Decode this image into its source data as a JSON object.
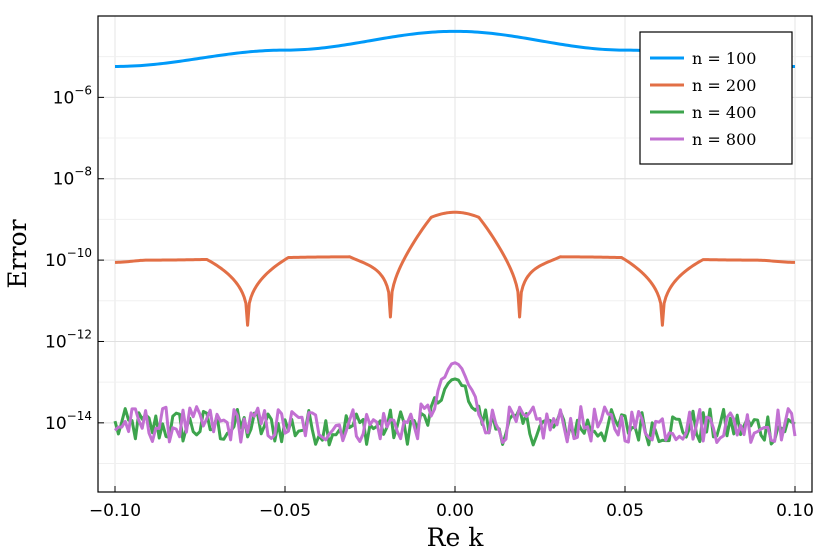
{
  "chart_data": {
    "type": "line",
    "title": "",
    "xlabel": "Re k",
    "ylabel": "Error",
    "xlim": [
      -0.105,
      0.105
    ],
    "ylim_log10": [
      -15.7,
      -4.0
    ],
    "y_scale": "log10",
    "grid": true,
    "legend_position": "top-right",
    "x_ticks": [
      -0.1,
      -0.05,
      0.0,
      0.05,
      0.1
    ],
    "x_tick_labels": [
      "−0.10",
      "−0.05",
      "0.00",
      "0.05",
      "0.10"
    ],
    "y_tick_exponents": [
      -6,
      -8,
      -10,
      -12,
      -14
    ],
    "y_tick_base": "10",
    "y_tick_labels": [
      "−6",
      "−8",
      "−10",
      "−12",
      "−14"
    ],
    "series": [
      {
        "name": "n = 100",
        "color": "#009AF9",
        "generator": "smooth",
        "points": [
          [
            -0.1,
            5.75e-06
          ],
          [
            -0.05,
            1.45e-05
          ],
          [
            0.0,
            4.2e-05
          ],
          [
            0.05,
            1.45e-05
          ],
          [
            0.1,
            5.75e-06
          ]
        ]
      },
      {
        "name": "n = 200",
        "color": "#E26F46",
        "generator": "oscillating",
        "peaks": [
          [
            -0.1,
            8.8e-11
          ],
          [
            -0.09,
            1e-10
          ],
          [
            -0.0905,
            1e-10
          ],
          [
            -0.032,
            1.2e-10
          ],
          [
            0.0,
            1.5e-09
          ],
          [
            0.032,
            1.2e-10
          ],
          [
            0.088,
            1e-10
          ],
          [
            0.1,
            8.8e-11
          ]
        ],
        "dips": [
          [
            -0.061,
            2.5e-12
          ],
          [
            -0.019,
            4e-12
          ],
          [
            0.019,
            4e-12
          ],
          [
            0.061,
            2.5e-12
          ]
        ]
      },
      {
        "name": "n = 400",
        "color": "#3DA44D",
        "generator": "noisy",
        "baseline": 8e-15,
        "peak_x": 0.0,
        "peak_value": 1.2e-13
      },
      {
        "name": "n = 800",
        "color": "#C271D2",
        "generator": "noisy",
        "baseline": 9e-15,
        "peak_x": 0.0,
        "peak_value": 3e-13
      }
    ]
  }
}
